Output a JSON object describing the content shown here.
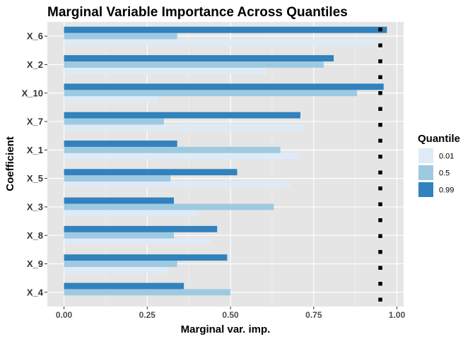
{
  "chart_data": {
    "type": "bar",
    "orientation": "horizontal",
    "title": "Marginal Variable Importance Across Quantiles",
    "xlabel": "Marginal var. imp.",
    "ylabel": "Coefficient",
    "categories": [
      "X_6",
      "X_2",
      "X_10",
      "X_7",
      "X_1",
      "X_5",
      "X_3",
      "X_8",
      "X_9",
      "X_4"
    ],
    "series": [
      {
        "name": "0.01",
        "color": "#deebf7",
        "values": [
          0.95,
          0.61,
          0.28,
          0.72,
          0.71,
          0.68,
          0.4,
          0.44,
          0.31,
          0.0
        ]
      },
      {
        "name": "0.5",
        "color": "#9ecae1",
        "values": [
          0.34,
          0.78,
          0.88,
          0.3,
          0.65,
          0.32,
          0.63,
          0.33,
          0.34,
          0.5
        ]
      },
      {
        "name": "0.99",
        "color": "#3182bd",
        "values": [
          0.97,
          0.81,
          0.96,
          0.71,
          0.34,
          0.52,
          0.33,
          0.46,
          0.49,
          0.36
        ]
      }
    ],
    "reference_line": {
      "x": 0.95,
      "style": "dotted",
      "color": "#000000"
    },
    "xlim": [
      -0.05,
      1.02
    ],
    "xticks": [
      "0.00",
      "0.25",
      "0.50",
      "0.75",
      "1.00"
    ],
    "xtick_values": [
      0,
      0.25,
      0.5,
      0.75,
      1.0
    ],
    "legend": {
      "title": "Quantile",
      "position": "right"
    },
    "grid": true,
    "panel_background": "#e5e5e5"
  }
}
